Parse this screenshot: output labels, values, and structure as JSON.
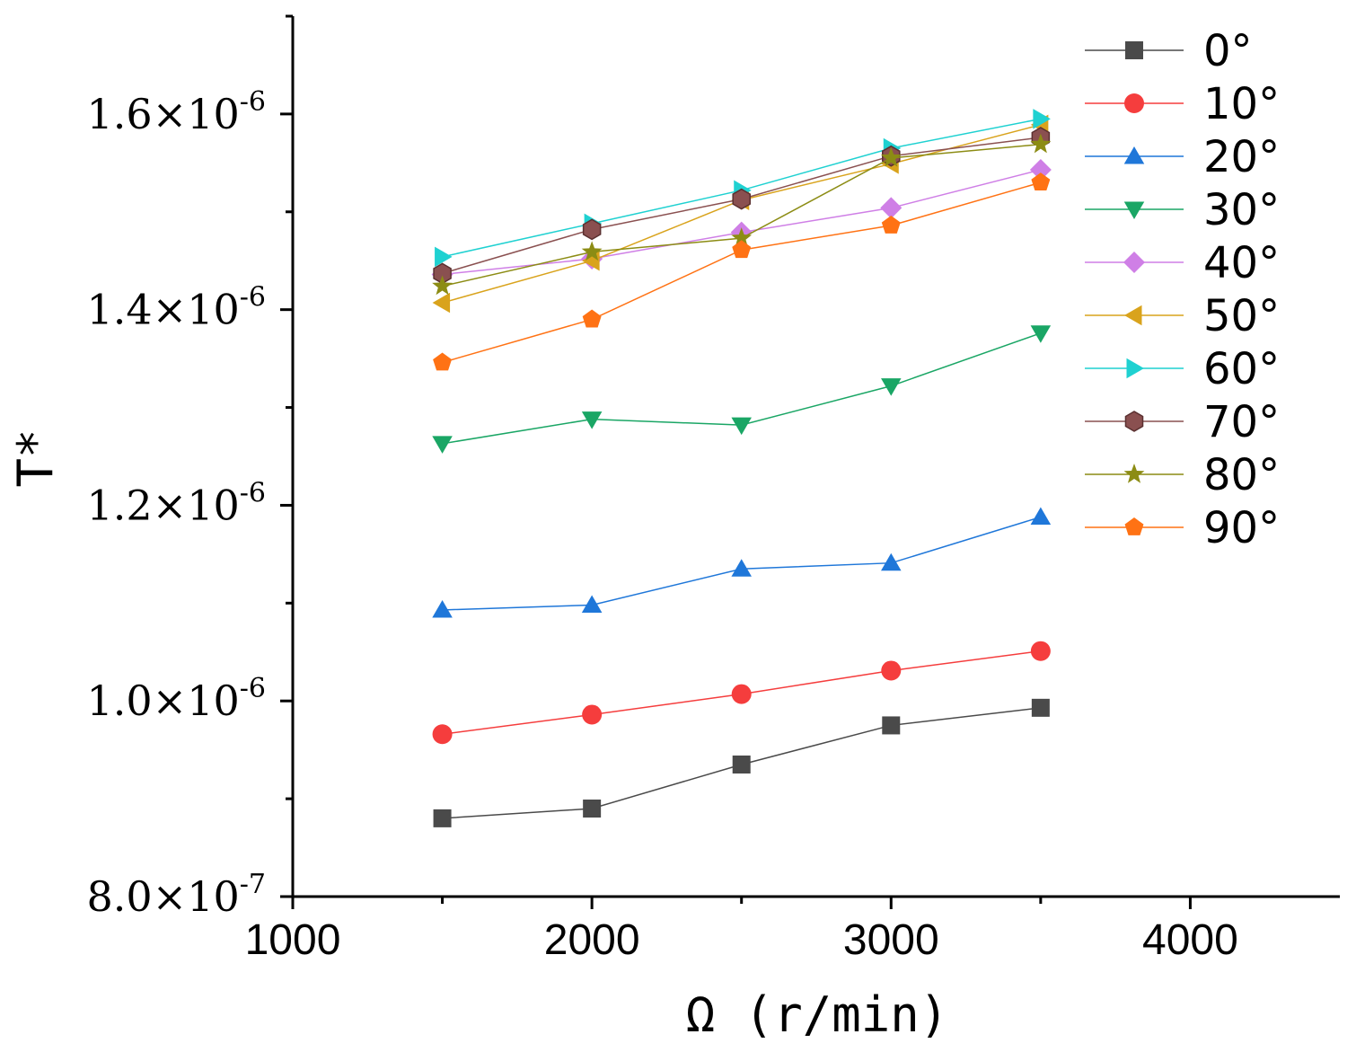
{
  "chart_data": {
    "type": "line",
    "title": "",
    "xlabel": "Ω  (r/min)",
    "ylabel": "T*",
    "xlim": [
      1000,
      4500
    ],
    "ylim": [
      8e-07,
      1.7e-06
    ],
    "x_ticks": [
      1000,
      2000,
      3000,
      4000
    ],
    "x_tick_labels": [
      "1000",
      "2000",
      "3000",
      "4000"
    ],
    "y_ticks": [
      {
        "value": 8e-07,
        "mantissa": "8.0",
        "exponent": "-7"
      },
      {
        "value": 1e-06,
        "mantissa": "1.0",
        "exponent": "-6"
      },
      {
        "value": 1.2e-06,
        "mantissa": "1.2",
        "exponent": "-6"
      },
      {
        "value": 1.4e-06,
        "mantissa": "1.4",
        "exponent": "-6"
      },
      {
        "value": 1.6e-06,
        "mantissa": "1.6",
        "exponent": "-6"
      }
    ],
    "times_sign": "×10",
    "legend_position": "top-right",
    "x": [
      1500,
      2000,
      2500,
      3000,
      3500
    ],
    "series": [
      {
        "name": "0°",
        "color": "#4a4a4a",
        "marker": "square",
        "values": [
          8.8e-07,
          8.9e-07,
          9.35e-07,
          9.75e-07,
          9.93e-07
        ]
      },
      {
        "name": "10°",
        "color": "#f53d3d",
        "marker": "circle",
        "values": [
          9.66e-07,
          9.86e-07,
          1.007e-06,
          1.031e-06,
          1.051e-06
        ]
      },
      {
        "name": "20°",
        "color": "#1f77d9",
        "marker": "triangle-up",
        "values": [
          1.093e-06,
          1.098e-06,
          1.135e-06,
          1.141e-06,
          1.188e-06
        ]
      },
      {
        "name": "30°",
        "color": "#1aa665",
        "marker": "triangle-down",
        "values": [
          1.263e-06,
          1.288e-06,
          1.282e-06,
          1.322e-06,
          1.376e-06
        ]
      },
      {
        "name": "40°",
        "color": "#cf7fe6",
        "marker": "diamond",
        "values": [
          1.436e-06,
          1.452e-06,
          1.479e-06,
          1.504e-06,
          1.543e-06
        ]
      },
      {
        "name": "50°",
        "color": "#d9a31c",
        "marker": "triangle-left",
        "values": [
          1.407e-06,
          1.45e-06,
          1.512e-06,
          1.549e-06,
          1.589e-06
        ]
      },
      {
        "name": "60°",
        "color": "#1fd1d1",
        "marker": "triangle-right",
        "values": [
          1.454e-06,
          1.488e-06,
          1.522e-06,
          1.565e-06,
          1.595e-06
        ]
      },
      {
        "name": "70°",
        "color": "#8a5050",
        "marker": "hexagon",
        "values": [
          1.437e-06,
          1.482e-06,
          1.513e-06,
          1.557e-06,
          1.576e-06
        ]
      },
      {
        "name": "80°",
        "color": "#8c8c14",
        "marker": "star",
        "values": [
          1.424e-06,
          1.459e-06,
          1.473e-06,
          1.555e-06,
          1.569e-06
        ]
      },
      {
        "name": "90°",
        "color": "#ff7214",
        "marker": "pentagon",
        "values": [
          1.346e-06,
          1.39e-06,
          1.461e-06,
          1.486e-06,
          1.53e-06
        ]
      }
    ]
  }
}
